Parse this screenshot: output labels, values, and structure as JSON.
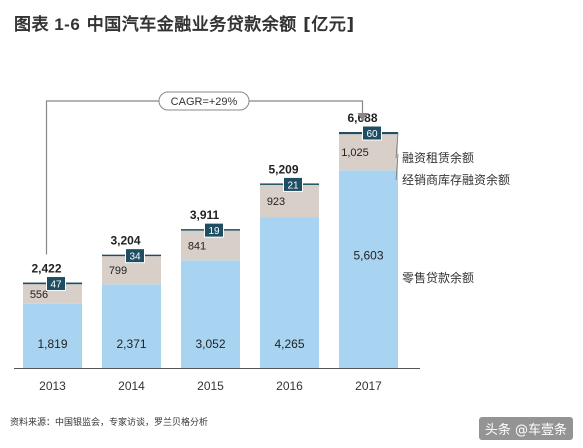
{
  "title_prefix": "图表 1-6",
  "title_main": "中国汽车金融业务贷款余额 [亿元]",
  "cagr_label": "CAGR=+29%",
  "source": "资料来源：中国银监会，专家访谈，罗兰贝格分析",
  "watermark": "头条 @车壹条",
  "colors": {
    "retail": "#a8d4f2",
    "dealer": "#d8cfc8",
    "leasing": "#1f4e63",
    "arrow": "#888888"
  },
  "chart_data": {
    "type": "bar",
    "stacked": true,
    "categories": [
      "2013",
      "2014",
      "2015",
      "2016",
      "2017"
    ],
    "series": [
      {
        "name": "零售贷款余额",
        "values": [
          1819,
          2371,
          3052,
          4265,
          5603
        ]
      },
      {
        "name": "经销商库存融资余额",
        "values": [
          556,
          799,
          841,
          923,
          1025
        ]
      },
      {
        "name": "融资租赁余额",
        "values": [
          47,
          34,
          19,
          21,
          60
        ]
      }
    ],
    "totals": [
      "2,422",
      "3,204",
      "3,911",
      "5,209",
      "6,688"
    ],
    "value_labels": [
      [
        "1,819",
        "2,371",
        "3,052",
        "4,265",
        "5,603"
      ],
      [
        "556",
        "799",
        "841",
        "923",
        "1,025"
      ],
      [
        "47",
        "34",
        "19",
        "21",
        "60"
      ]
    ],
    "ylim": [
      0,
      7000
    ],
    "grid": false,
    "legend_position": "right"
  }
}
